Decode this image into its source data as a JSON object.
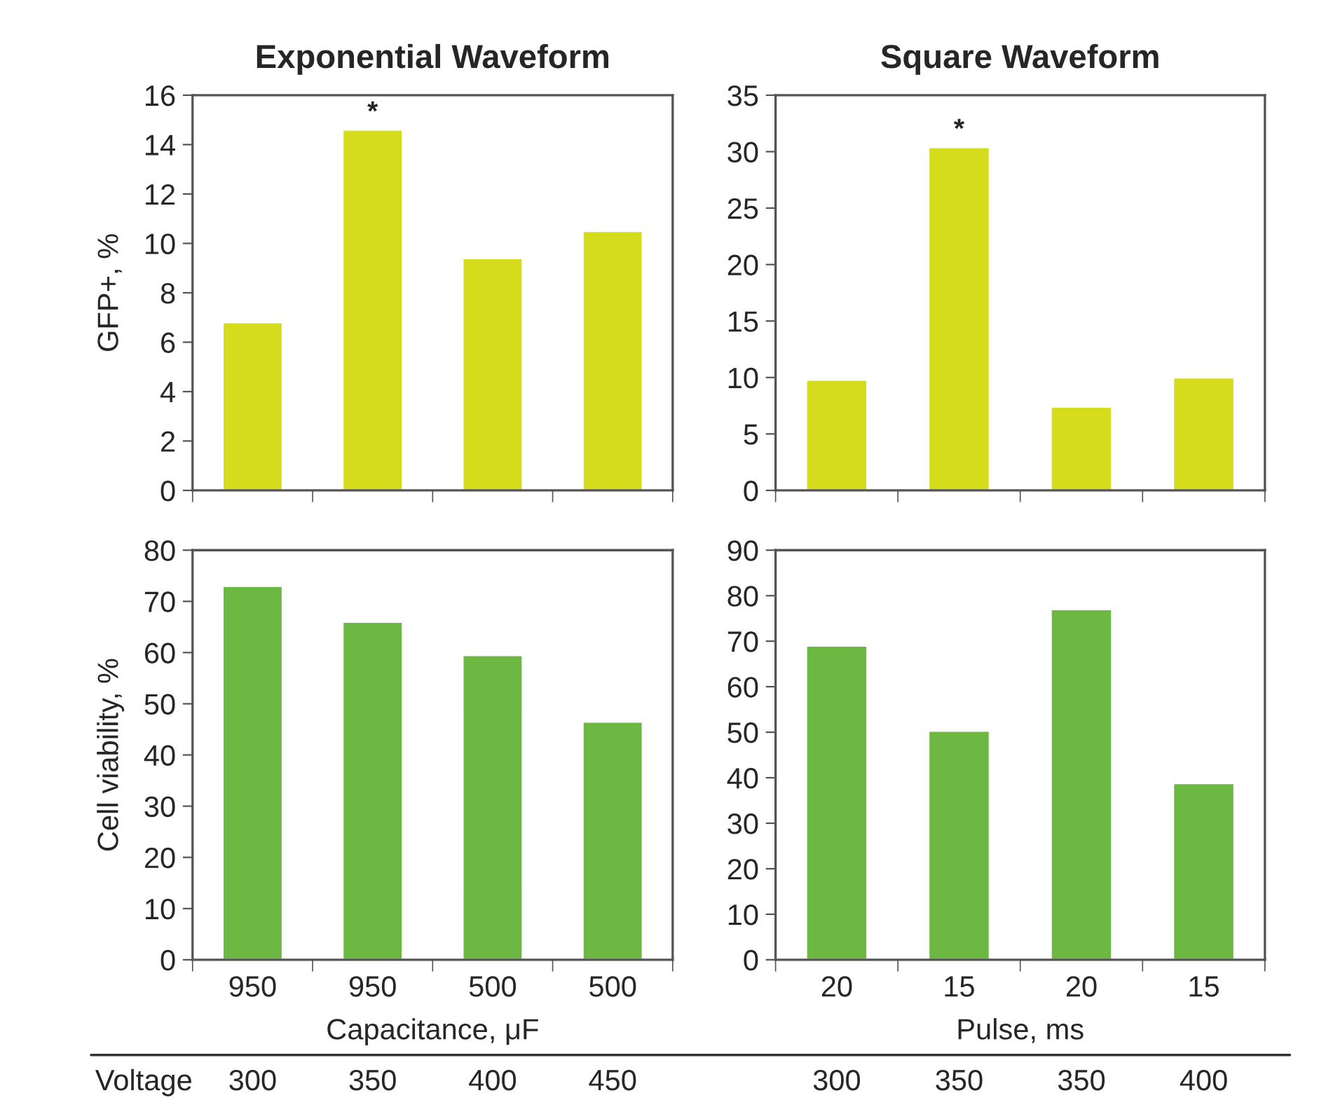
{
  "chart_data": [
    {
      "type": "bar",
      "title": "Exponential Waveform",
      "ylabel": "GFP+, %",
      "categories": [
        "950",
        "950",
        "500",
        "500"
      ],
      "values": [
        6.8,
        14.6,
        9.4,
        10.5
      ],
      "color": "#d4dc1c",
      "ylim": [
        0,
        16
      ],
      "yticks": [
        0,
        2,
        4,
        6,
        8,
        10,
        12,
        14,
        16
      ],
      "tick_labels": "y",
      "annotations": [
        "*"
      ]
    },
    {
      "type": "bar",
      "title": "Square Waveform",
      "categories": [
        "20",
        "15",
        "20",
        "15"
      ],
      "values": [
        9.8,
        30.4,
        7.4,
        10.0
      ],
      "color": "#d4dc1c",
      "ylim": [
        0,
        35
      ],
      "yticks": [
        0,
        5,
        10,
        15,
        20,
        25,
        30,
        35
      ],
      "tick_labels": "y",
      "annotations": [
        "*"
      ]
    },
    {
      "type": "bar",
      "ylabel": "Cell viability, %",
      "xlabel": "Capacitance, μF",
      "categories": [
        "950",
        "950",
        "500",
        "500"
      ],
      "values": [
        73,
        66,
        59.5,
        46.5
      ],
      "color": "#6db843",
      "ylim": [
        0,
        80
      ],
      "yticks": [
        0,
        10,
        20,
        30,
        40,
        50,
        60,
        70,
        80
      ],
      "annotations": [
        "Voltage",
        "300",
        "350",
        "400",
        "450"
      ]
    },
    {
      "type": "bar",
      "xlabel": "Pulse, ms",
      "categories": [
        "20",
        "15",
        "20",
        "15"
      ],
      "values": [
        69,
        50.3,
        77,
        38.8
      ],
      "color": "#6db843",
      "ylim": [
        0,
        90
      ],
      "yticks": [
        0,
        10,
        20,
        30,
        40,
        50,
        60,
        70,
        80,
        90
      ],
      "annotations": [
        "300",
        "350",
        "350",
        "400"
      ]
    }
  ]
}
